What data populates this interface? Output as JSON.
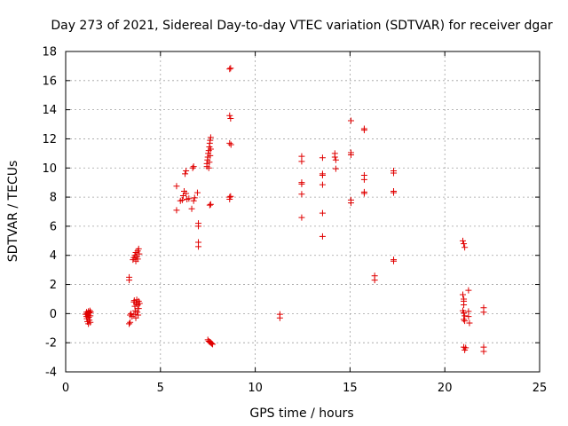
{
  "chart_data": {
    "type": "scatter",
    "title": "Day 273 of 2021, Sidereal Day-to-day VTEC variation (SDTVAR) for receiver dgar",
    "xlabel": "GPS time / hours",
    "ylabel": "SDTVAR / TECUs",
    "xlim": [
      0,
      25
    ],
    "ylim": [
      -4,
      18
    ],
    "xticks": [
      0,
      5,
      10,
      15,
      20,
      25
    ],
    "yticks": [
      -4,
      -2,
      0,
      2,
      4,
      6,
      8,
      10,
      12,
      14,
      16,
      18
    ],
    "grid": true,
    "marker": "plus",
    "color": "#e00000",
    "series": [
      {
        "name": "SDTVAR",
        "points": [
          [
            1.05,
            -0.05
          ],
          [
            1.1,
            -0.2
          ],
          [
            1.1,
            0.1
          ],
          [
            1.12,
            -0.35
          ],
          [
            1.15,
            0.0
          ],
          [
            1.15,
            -0.55
          ],
          [
            1.18,
            -0.1
          ],
          [
            1.2,
            0.15
          ],
          [
            1.2,
            -0.7
          ],
          [
            1.22,
            -0.25
          ],
          [
            1.25,
            0.05
          ],
          [
            1.25,
            -0.45
          ],
          [
            1.28,
            0.2
          ],
          [
            1.3,
            -0.6
          ],
          [
            1.3,
            -0.15
          ],
          [
            1.32,
            0.1
          ],
          [
            3.35,
            2.5
          ],
          [
            3.35,
            2.3
          ],
          [
            3.35,
            -0.7
          ],
          [
            3.4,
            -0.6
          ],
          [
            3.4,
            -0.1
          ],
          [
            3.45,
            0.0
          ],
          [
            3.5,
            -0.2
          ],
          [
            3.55,
            3.7
          ],
          [
            3.6,
            3.85
          ],
          [
            3.6,
            -0.05
          ],
          [
            3.6,
            0.8
          ],
          [
            3.62,
            0.9
          ],
          [
            3.65,
            4.0
          ],
          [
            3.65,
            0.5
          ],
          [
            3.68,
            0.2
          ],
          [
            3.7,
            3.6
          ],
          [
            3.7,
            4.2
          ],
          [
            3.7,
            -0.3
          ],
          [
            3.72,
            0.7
          ],
          [
            3.75,
            3.9
          ],
          [
            3.75,
            0.95
          ],
          [
            3.78,
            0.1
          ],
          [
            3.8,
            4.3
          ],
          [
            3.8,
            3.75
          ],
          [
            3.8,
            0.6
          ],
          [
            3.82,
            -0.1
          ],
          [
            3.85,
            4.45
          ],
          [
            3.85,
            0.35
          ],
          [
            3.85,
            0.85
          ],
          [
            3.88,
            4.1
          ],
          [
            3.9,
            0.7
          ],
          [
            5.85,
            8.75
          ],
          [
            5.85,
            7.1
          ],
          [
            6.05,
            7.75
          ],
          [
            6.15,
            7.8
          ],
          [
            6.2,
            8.1
          ],
          [
            6.25,
            8.4
          ],
          [
            6.3,
            9.6
          ],
          [
            6.35,
            9.8
          ],
          [
            6.35,
            8.25
          ],
          [
            6.4,
            7.85
          ],
          [
            6.5,
            7.9
          ],
          [
            6.65,
            7.2
          ],
          [
            6.7,
            10.0
          ],
          [
            6.75,
            10.1
          ],
          [
            6.75,
            7.75
          ],
          [
            6.8,
            7.95
          ],
          [
            6.95,
            8.3
          ],
          [
            7.0,
            6.2
          ],
          [
            7.0,
            6.0
          ],
          [
            7.0,
            4.9
          ],
          [
            7.0,
            4.6
          ],
          [
            7.45,
            10.1
          ],
          [
            7.45,
            10.3
          ],
          [
            7.48,
            10.55
          ],
          [
            7.5,
            10.75
          ],
          [
            7.52,
            11.0
          ],
          [
            7.55,
            11.2
          ],
          [
            7.58,
            11.45
          ],
          [
            7.6,
            11.7
          ],
          [
            7.62,
            11.9
          ],
          [
            7.65,
            12.1
          ],
          [
            7.55,
            10.0
          ],
          [
            7.58,
            10.4
          ],
          [
            7.62,
            10.85
          ],
          [
            7.65,
            11.3
          ],
          [
            7.6,
            7.45
          ],
          [
            7.65,
            7.5
          ],
          [
            7.5,
            -1.8
          ],
          [
            7.55,
            -1.9
          ],
          [
            7.6,
            -1.95
          ],
          [
            7.65,
            -2.0
          ],
          [
            7.7,
            -2.05
          ],
          [
            7.75,
            -2.1
          ],
          [
            8.65,
            16.8
          ],
          [
            8.7,
            16.85
          ],
          [
            8.65,
            13.6
          ],
          [
            8.7,
            13.4
          ],
          [
            8.65,
            11.7
          ],
          [
            8.72,
            11.6
          ],
          [
            8.65,
            8.0
          ],
          [
            8.7,
            8.05
          ],
          [
            8.65,
            7.85
          ],
          [
            11.3,
            -0.05
          ],
          [
            11.3,
            -0.3
          ],
          [
            12.45,
            10.8
          ],
          [
            12.45,
            10.45
          ],
          [
            12.45,
            9.0
          ],
          [
            12.45,
            8.9
          ],
          [
            12.45,
            8.2
          ],
          [
            12.45,
            6.6
          ],
          [
            13.55,
            10.7
          ],
          [
            13.55,
            9.6
          ],
          [
            13.55,
            9.5
          ],
          [
            13.55,
            8.85
          ],
          [
            13.55,
            6.9
          ],
          [
            13.55,
            5.3
          ],
          [
            14.2,
            11.0
          ],
          [
            14.2,
            10.75
          ],
          [
            14.25,
            10.55
          ],
          [
            14.25,
            9.95
          ],
          [
            15.05,
            13.25
          ],
          [
            15.05,
            11.05
          ],
          [
            15.05,
            10.9
          ],
          [
            15.05,
            7.8
          ],
          [
            15.05,
            7.6
          ],
          [
            15.75,
            12.7
          ],
          [
            15.75,
            12.6
          ],
          [
            15.75,
            9.5
          ],
          [
            15.75,
            9.2
          ],
          [
            15.75,
            8.35
          ],
          [
            15.75,
            8.25
          ],
          [
            16.3,
            2.6
          ],
          [
            16.3,
            2.3
          ],
          [
            17.3,
            9.8
          ],
          [
            17.3,
            9.65
          ],
          [
            17.3,
            8.4
          ],
          [
            17.3,
            8.3
          ],
          [
            17.3,
            3.7
          ],
          [
            17.3,
            3.6
          ],
          [
            20.95,
            5.0
          ],
          [
            21.0,
            4.8
          ],
          [
            21.05,
            4.55
          ],
          [
            20.95,
            1.3
          ],
          [
            21.0,
            1.0
          ],
          [
            21.0,
            0.85
          ],
          [
            21.0,
            0.6
          ],
          [
            20.95,
            0.2
          ],
          [
            21.0,
            0.05
          ],
          [
            21.05,
            -0.15
          ],
          [
            21.0,
            -0.4
          ],
          [
            21.05,
            -0.5
          ],
          [
            21.25,
            1.6
          ],
          [
            21.25,
            0.15
          ],
          [
            21.25,
            -0.2
          ],
          [
            21.3,
            -0.65
          ],
          [
            21.0,
            -2.3
          ],
          [
            21.05,
            -2.5
          ],
          [
            21.1,
            -2.35
          ],
          [
            22.05,
            0.4
          ],
          [
            22.05,
            0.1
          ],
          [
            22.05,
            -2.3
          ],
          [
            22.05,
            -2.6
          ]
        ]
      }
    ]
  }
}
